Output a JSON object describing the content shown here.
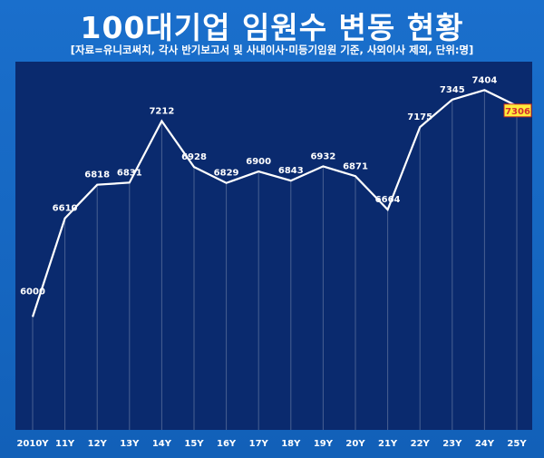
{
  "title": "100대기업 임원수 변동 현황",
  "subtitle": "[자료=유니코써치, 각사 반기보고서 및 사내이사·미등기임원 기준, 사외이사 제외, 단위:명]",
  "chart_data": {
    "type": "line",
    "title": "100대기업 임원수 변동 현황",
    "categories": [
      "2010Y",
      "11Y",
      "12Y",
      "13Y",
      "14Y",
      "15Y",
      "16Y",
      "17Y",
      "18Y",
      "19Y",
      "20Y",
      "21Y",
      "22Y",
      "23Y",
      "24Y",
      "25Y"
    ],
    "values": [
      6000,
      6610,
      6818,
      6831,
      7212,
      6928,
      6829,
      6900,
      6843,
      6932,
      6871,
      6664,
      7175,
      7345,
      7404,
      7306
    ],
    "ylim": [
      5300,
      7580
    ],
    "grid": false,
    "highlight_last": true,
    "colors": {
      "plot_bg": "#0a2a6e",
      "line": "#ffffff",
      "highlight": "#ffeb3b",
      "highlight_text": "#d32f2f"
    }
  }
}
